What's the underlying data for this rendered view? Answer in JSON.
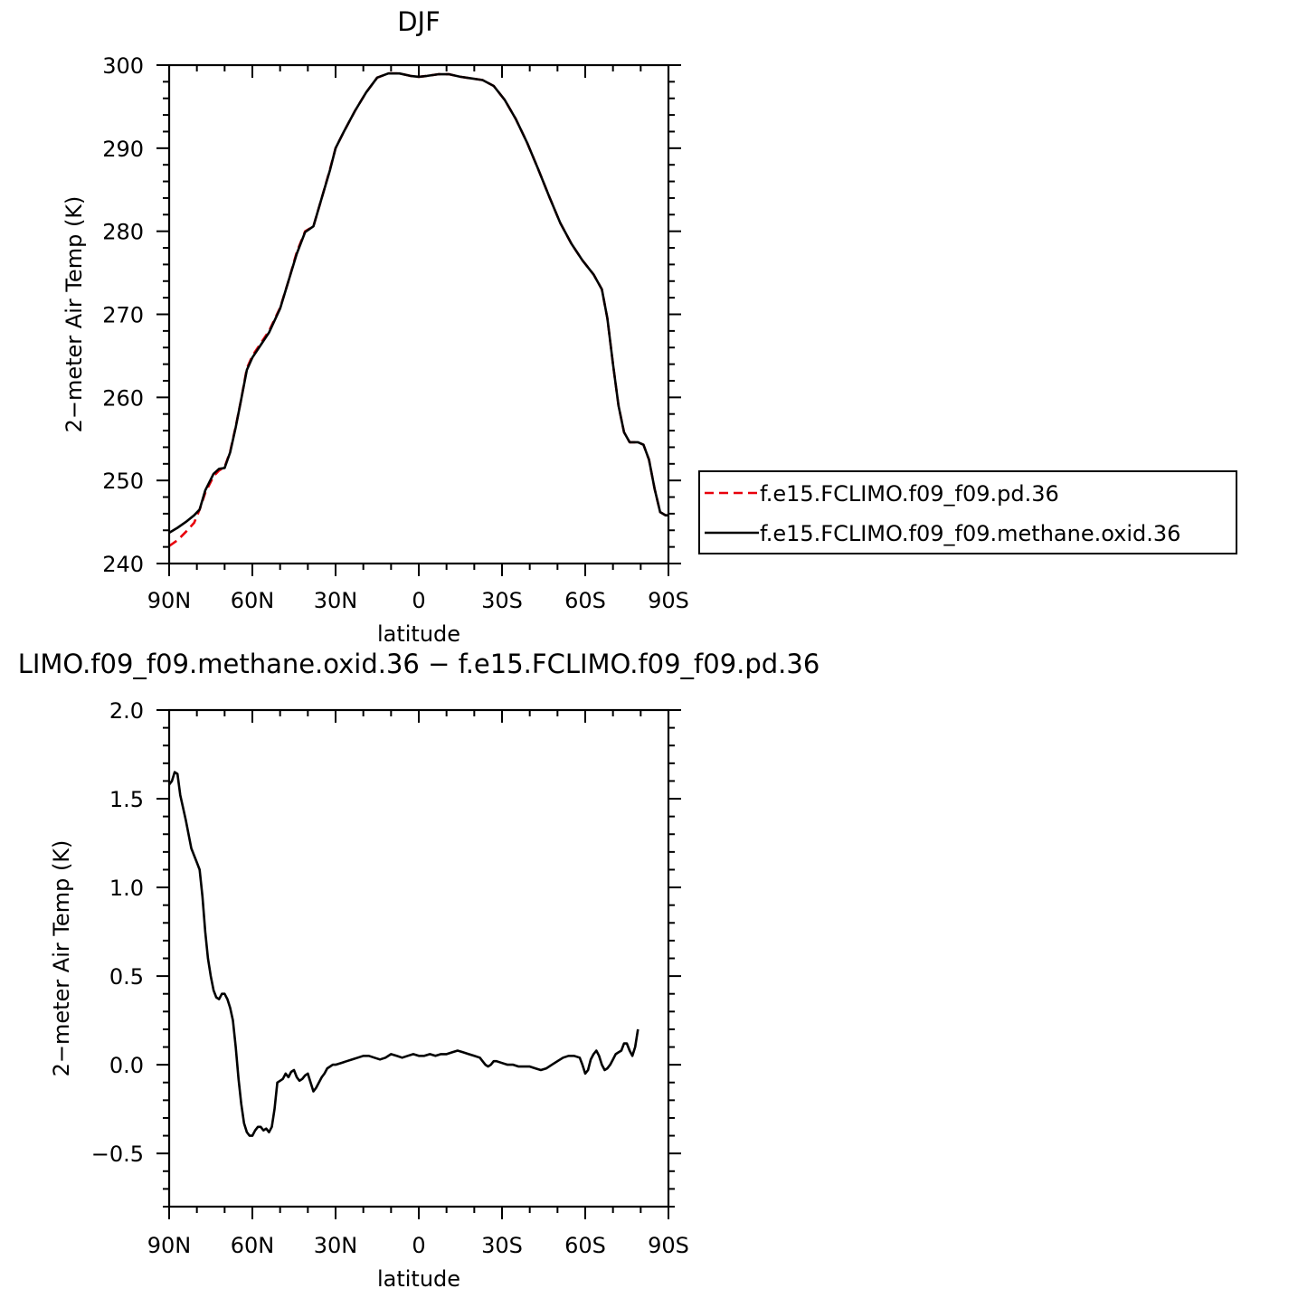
{
  "chart_data": [
    {
      "type": "line",
      "title": "DJF",
      "xlabel": "latitude",
      "ylabel": "2−meter Air Temp (K)",
      "xlim": [
        -90,
        90
      ],
      "ylim": [
        240,
        300
      ],
      "xticks": [
        {
          "value": -90,
          "label": "90N"
        },
        {
          "value": -60,
          "label": "60N"
        },
        {
          "value": -30,
          "label": "30N"
        },
        {
          "value": 0,
          "label": "0"
        },
        {
          "value": 30,
          "label": "30S"
        },
        {
          "value": 60,
          "label": "60S"
        },
        {
          "value": 90,
          "label": "90S"
        }
      ],
      "yticks": [
        240,
        250,
        260,
        270,
        280,
        290,
        300
      ],
      "legend": "right",
      "series": [
        {
          "name": "f.e15.FCLIMO.f09_f09.pd.36",
          "color": "#e8000b",
          "dash": "dashed",
          "points": [
            [
              -90,
              242.1
            ],
            [
              -87,
              242.8
            ],
            [
              -84,
              243.8
            ],
            [
              -81,
              244.9
            ],
            [
              -79,
              246.5
            ],
            [
              -77,
              248.5
            ],
            [
              -74,
              250.5
            ],
            [
              -72,
              251.2
            ],
            [
              -70,
              251.6
            ],
            [
              -68,
              253.5
            ],
            [
              -66,
              256.5
            ],
            [
              -64,
              259.8
            ],
            [
              -62,
              263.5
            ],
            [
              -60,
              265.0
            ],
            [
              -57,
              266.5
            ],
            [
              -54,
              268.0
            ],
            [
              -50,
              270.8
            ],
            [
              -47,
              274.0
            ],
            [
              -44,
              277.5
            ],
            [
              -41,
              280.0
            ],
            [
              -38,
              280.6
            ],
            [
              -35,
              284.0
            ],
            [
              -32,
              287.5
            ],
            [
              -30,
              290.0
            ],
            [
              -27,
              292.0
            ],
            [
              -23,
              294.5
            ],
            [
              -19,
              296.7
            ],
            [
              -15,
              298.5
            ],
            [
              -11,
              299.0
            ],
            [
              -7,
              299.0
            ],
            [
              -3,
              298.7
            ],
            [
              0,
              298.6
            ],
            [
              3,
              298.7
            ],
            [
              7,
              298.9
            ],
            [
              11,
              298.9
            ],
            [
              15,
              298.6
            ],
            [
              19,
              298.4
            ],
            [
              23,
              298.2
            ],
            [
              27,
              297.5
            ],
            [
              31,
              295.8
            ],
            [
              35,
              293.5
            ],
            [
              39,
              290.7
            ],
            [
              43,
              287.5
            ],
            [
              47,
              284.2
            ],
            [
              51,
              281.0
            ],
            [
              55,
              278.5
            ],
            [
              59,
              276.5
            ],
            [
              63,
              274.8
            ],
            [
              66,
              273.0
            ],
            [
              68,
              269.5
            ],
            [
              70,
              264.0
            ],
            [
              72,
              259.0
            ],
            [
              74,
              255.8
            ],
            [
              76,
              254.6
            ],
            [
              79,
              254.6
            ],
            [
              81,
              254.3
            ],
            [
              83,
              252.5
            ],
            [
              85,
              249.0
            ],
            [
              87,
              246.2
            ],
            [
              89,
              245.8
            ],
            [
              90,
              245.8
            ]
          ]
        },
        {
          "name": "f.e15.FCLIMO.f09_f09.methane.oxid.36",
          "color": "#000000",
          "dash": "solid",
          "points": [
            [
              -90,
              243.7
            ],
            [
              -87,
              244.3
            ],
            [
              -84,
              245.0
            ],
            [
              -81,
              245.8
            ],
            [
              -79,
              246.5
            ],
            [
              -77,
              248.8
            ],
            [
              -74,
              250.8
            ],
            [
              -72,
              251.4
            ],
            [
              -70,
              251.5
            ],
            [
              -68,
              253.4
            ],
            [
              -66,
              256.4
            ],
            [
              -64,
              259.8
            ],
            [
              -62,
              263.3
            ],
            [
              -60,
              264.8
            ],
            [
              -57,
              266.3
            ],
            [
              -54,
              267.8
            ],
            [
              -50,
              270.7
            ],
            [
              -47,
              274.0
            ],
            [
              -44,
              277.3
            ],
            [
              -41,
              279.9
            ],
            [
              -38,
              280.6
            ],
            [
              -35,
              284.0
            ],
            [
              -32,
              287.4
            ],
            [
              -30,
              290.0
            ],
            [
              -27,
              292.0
            ],
            [
              -23,
              294.5
            ],
            [
              -19,
              296.7
            ],
            [
              -15,
              298.5
            ],
            [
              -11,
              299.0
            ],
            [
              -7,
              299.0
            ],
            [
              -3,
              298.7
            ],
            [
              0,
              298.6
            ],
            [
              3,
              298.7
            ],
            [
              7,
              298.9
            ],
            [
              11,
              298.9
            ],
            [
              15,
              298.6
            ],
            [
              19,
              298.4
            ],
            [
              23,
              298.2
            ],
            [
              27,
              297.5
            ],
            [
              31,
              295.8
            ],
            [
              35,
              293.5
            ],
            [
              39,
              290.7
            ],
            [
              43,
              287.5
            ],
            [
              47,
              284.2
            ],
            [
              51,
              281.0
            ],
            [
              55,
              278.5
            ],
            [
              59,
              276.5
            ],
            [
              63,
              274.8
            ],
            [
              66,
              273.0
            ],
            [
              68,
              269.5
            ],
            [
              70,
              264.0
            ],
            [
              72,
              259.0
            ],
            [
              74,
              255.8
            ],
            [
              76,
              254.6
            ],
            [
              79,
              254.6
            ],
            [
              81,
              254.3
            ],
            [
              83,
              252.5
            ],
            [
              85,
              249.0
            ],
            [
              87,
              246.2
            ],
            [
              89,
              245.8
            ],
            [
              90,
              245.8
            ]
          ]
        }
      ]
    },
    {
      "type": "line",
      "title": "LIMO.f09_f09.methane.oxid.36 − f.e15.FCLIMO.f09_f09.pd.36",
      "xlabel": "latitude",
      "ylabel": "2−meter Air Temp (K)",
      "xlim": [
        -90,
        90
      ],
      "ylim": [
        -0.8,
        2.0
      ],
      "xticks": [
        {
          "value": -90,
          "label": "90N"
        },
        {
          "value": -60,
          "label": "60N"
        },
        {
          "value": -30,
          "label": "30N"
        },
        {
          "value": 0,
          "label": "0"
        },
        {
          "value": 30,
          "label": "30S"
        },
        {
          "value": 60,
          "label": "60S"
        },
        {
          "value": 90,
          "label": "90S"
        }
      ],
      "yticks": [
        {
          "value": -0.5,
          "label": "−0.5"
        },
        {
          "value": 0.0,
          "label": "0.0"
        },
        {
          "value": 0.5,
          "label": "0.5"
        },
        {
          "value": 1.0,
          "label": "1.0"
        },
        {
          "value": 1.5,
          "label": "1.5"
        },
        {
          "value": 2.0,
          "label": "2.0"
        }
      ],
      "series": [
        {
          "color": "#000000",
          "dash": "solid",
          "points": [
            [
              -90,
              1.58
            ],
            [
              -89,
              1.6
            ],
            [
              -88,
              1.65
            ],
            [
              -87,
              1.64
            ],
            [
              -86,
              1.52
            ],
            [
              -84,
              1.38
            ],
            [
              -82,
              1.22
            ],
            [
              -80,
              1.14
            ],
            [
              -79,
              1.1
            ],
            [
              -78,
              0.95
            ],
            [
              -77,
              0.75
            ],
            [
              -76,
              0.6
            ],
            [
              -75,
              0.5
            ],
            [
              -74,
              0.42
            ],
            [
              -73,
              0.38
            ],
            [
              -72,
              0.37
            ],
            [
              -71,
              0.4
            ],
            [
              -70,
              0.4
            ],
            [
              -69,
              0.37
            ],
            [
              -68,
              0.32
            ],
            [
              -67,
              0.25
            ],
            [
              -66,
              0.1
            ],
            [
              -65,
              -0.08
            ],
            [
              -64,
              -0.22
            ],
            [
              -63,
              -0.33
            ],
            [
              -62,
              -0.38
            ],
            [
              -61,
              -0.4
            ],
            [
              -60,
              -0.4
            ],
            [
              -59,
              -0.37
            ],
            [
              -58,
              -0.35
            ],
            [
              -57,
              -0.35
            ],
            [
              -56,
              -0.37
            ],
            [
              -55,
              -0.36
            ],
            [
              -54,
              -0.38
            ],
            [
              -53,
              -0.35
            ],
            [
              -52,
              -0.25
            ],
            [
              -51,
              -0.1
            ],
            [
              -50,
              -0.09
            ],
            [
              -49,
              -0.08
            ],
            [
              -48,
              -0.05
            ],
            [
              -47,
              -0.07
            ],
            [
              -46,
              -0.04
            ],
            [
              -45,
              -0.03
            ],
            [
              -44,
              -0.07
            ],
            [
              -43,
              -0.09
            ],
            [
              -42,
              -0.08
            ],
            [
              -41,
              -0.06
            ],
            [
              -40,
              -0.05
            ],
            [
              -39,
              -0.1
            ],
            [
              -38,
              -0.15
            ],
            [
              -37,
              -0.13
            ],
            [
              -36,
              -0.1
            ],
            [
              -35,
              -0.07
            ],
            [
              -34,
              -0.05
            ],
            [
              -33,
              -0.02
            ],
            [
              -32,
              -0.01
            ],
            [
              -31,
              0.0
            ],
            [
              -30,
              0.0
            ],
            [
              -28,
              0.01
            ],
            [
              -26,
              0.02
            ],
            [
              -24,
              0.03
            ],
            [
              -22,
              0.04
            ],
            [
              -20,
              0.05
            ],
            [
              -18,
              0.05
            ],
            [
              -16,
              0.04
            ],
            [
              -14,
              0.03
            ],
            [
              -12,
              0.04
            ],
            [
              -10,
              0.06
            ],
            [
              -8,
              0.05
            ],
            [
              -6,
              0.04
            ],
            [
              -4,
              0.05
            ],
            [
              -2,
              0.06
            ],
            [
              0,
              0.05
            ],
            [
              2,
              0.05
            ],
            [
              4,
              0.06
            ],
            [
              6,
              0.05
            ],
            [
              8,
              0.06
            ],
            [
              10,
              0.06
            ],
            [
              12,
              0.07
            ],
            [
              14,
              0.08
            ],
            [
              16,
              0.07
            ],
            [
              18,
              0.06
            ],
            [
              20,
              0.05
            ],
            [
              22,
              0.04
            ],
            [
              23,
              0.02
            ],
            [
              24,
              0.0
            ],
            [
              25,
              -0.01
            ],
            [
              26,
              0.0
            ],
            [
              27,
              0.02
            ],
            [
              28,
              0.02
            ],
            [
              30,
              0.01
            ],
            [
              32,
              0.0
            ],
            [
              34,
              0.0
            ],
            [
              36,
              -0.01
            ],
            [
              38,
              -0.01
            ],
            [
              40,
              -0.01
            ],
            [
              42,
              -0.02
            ],
            [
              44,
              -0.03
            ],
            [
              46,
              -0.02
            ],
            [
              48,
              0.0
            ],
            [
              50,
              0.02
            ],
            [
              52,
              0.04
            ],
            [
              54,
              0.05
            ],
            [
              56,
              0.05
            ],
            [
              58,
              0.04
            ],
            [
              59,
              0.0
            ],
            [
              60,
              -0.05
            ],
            [
              61,
              -0.03
            ],
            [
              62,
              0.03
            ],
            [
              63,
              0.06
            ],
            [
              64,
              0.08
            ],
            [
              65,
              0.05
            ],
            [
              66,
              0.0
            ],
            [
              67,
              -0.03
            ],
            [
              68,
              -0.02
            ],
            [
              69,
              0.0
            ],
            [
              70,
              0.03
            ],
            [
              71,
              0.06
            ],
            [
              72,
              0.07
            ],
            [
              73,
              0.08
            ],
            [
              74,
              0.12
            ],
            [
              75,
              0.12
            ],
            [
              76,
              0.08
            ],
            [
              77,
              0.05
            ],
            [
              78,
              0.1
            ],
            [
              79,
              0.2
            ]
          ]
        }
      ]
    }
  ]
}
